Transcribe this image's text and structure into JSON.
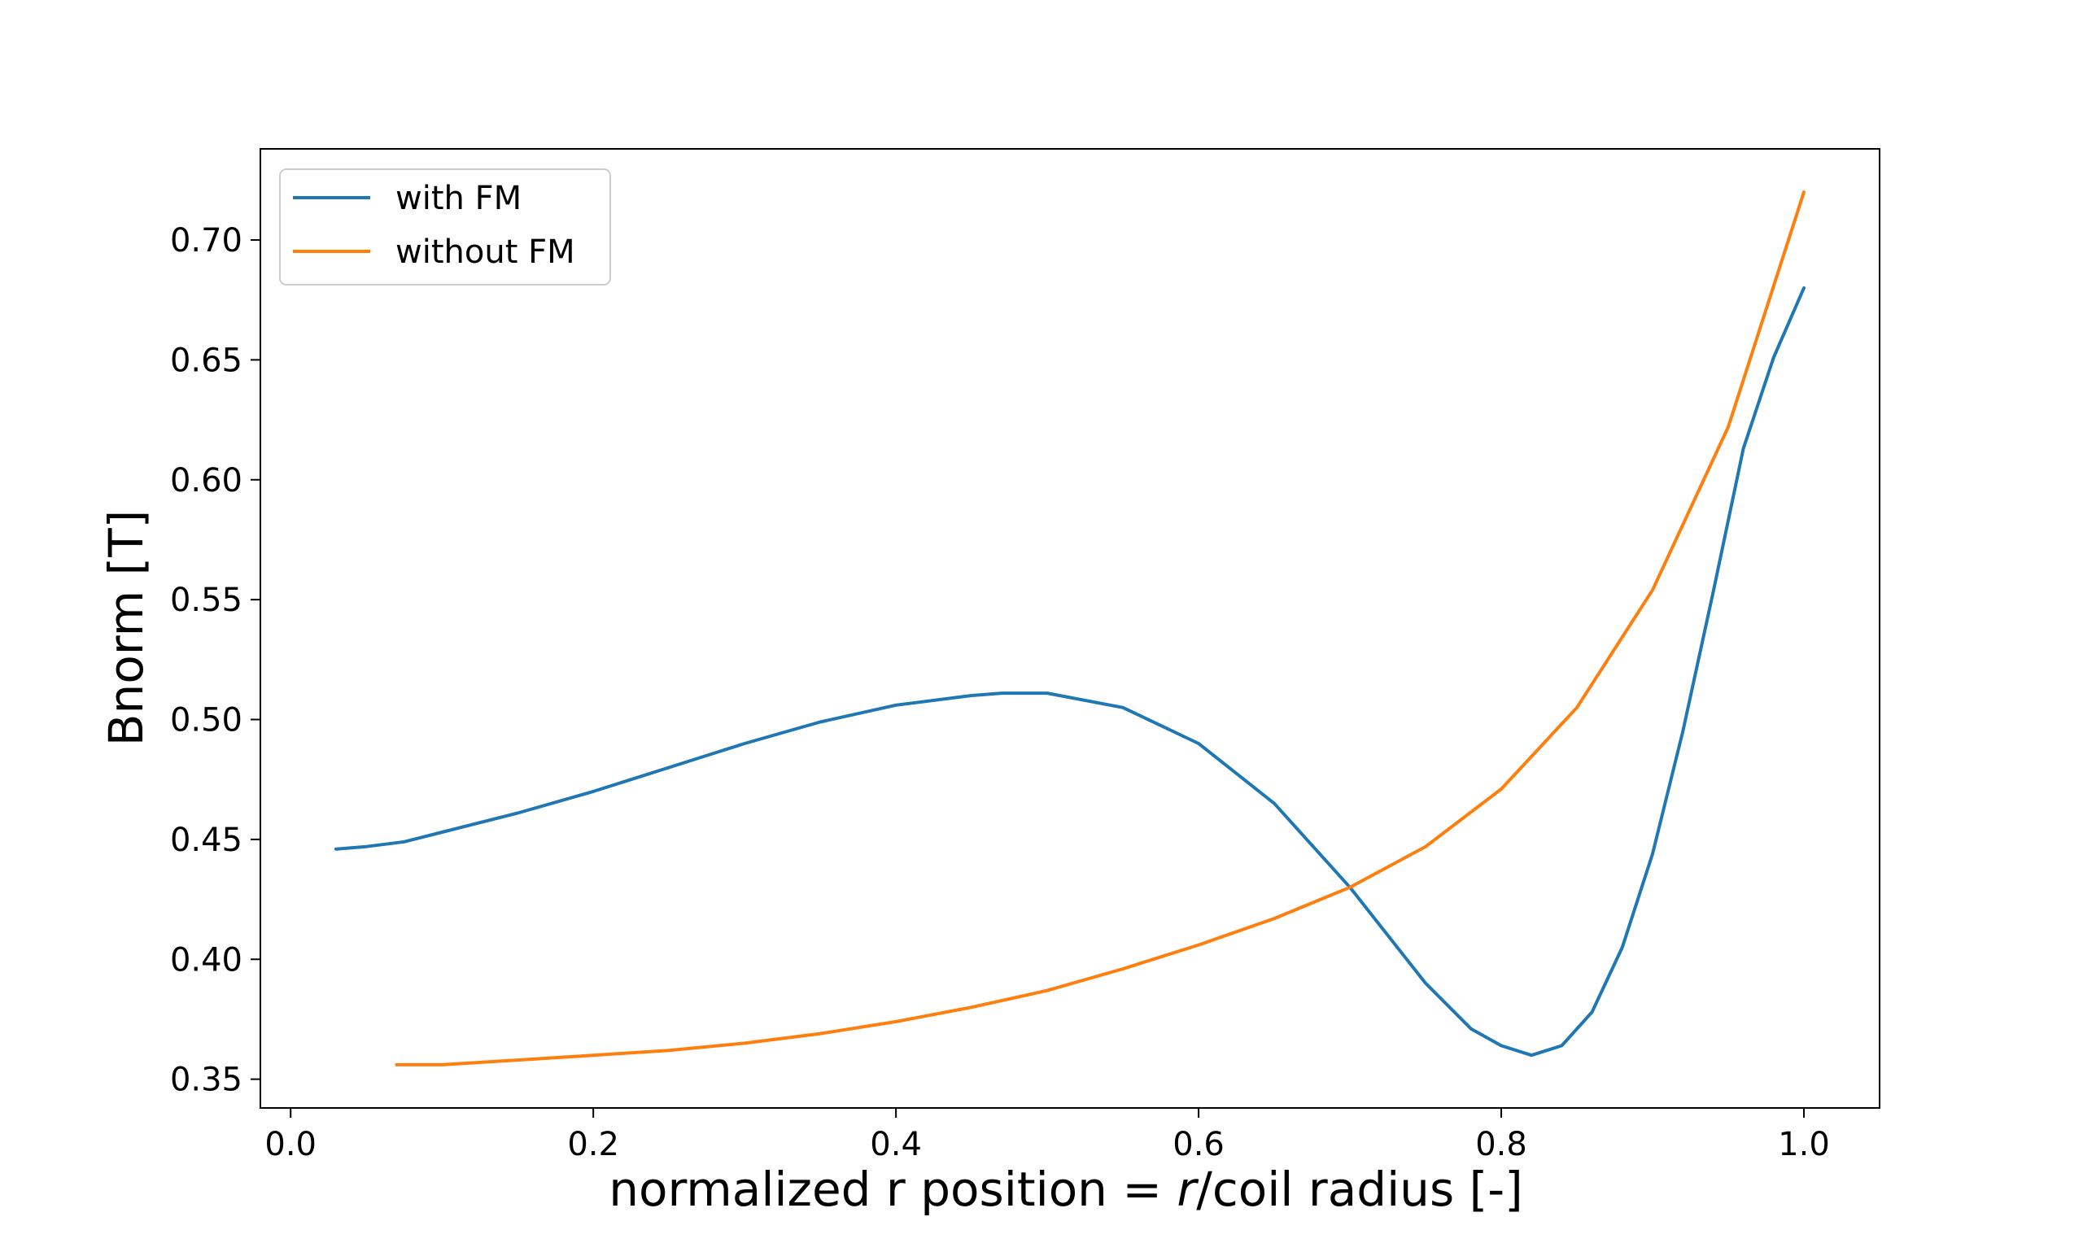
{
  "chart_data": {
    "type": "line",
    "title": "",
    "xlabel_parts": [
      "normalized r position = ",
      "r",
      "/coil radius [-]"
    ],
    "ylabel": "Bnorm [T]",
    "xlim": [
      -0.02,
      1.05
    ],
    "ylim": [
      0.338,
      0.738
    ],
    "xticks": [
      0.0,
      0.2,
      0.4,
      0.6,
      0.8,
      1.0
    ],
    "xtick_labels": [
      "0.0",
      "0.2",
      "0.4",
      "0.6",
      "0.8",
      "1.0"
    ],
    "yticks": [
      0.35,
      0.4,
      0.45,
      0.5,
      0.55,
      0.6,
      0.65,
      0.7
    ],
    "ytick_labels": [
      "0.35",
      "0.40",
      "0.45",
      "0.50",
      "0.55",
      "0.60",
      "0.65",
      "0.70"
    ],
    "grid": false,
    "legend_position": "top-left",
    "series": [
      {
        "name": "with FM",
        "color": "#1f77b4",
        "x": [
          0.03,
          0.05,
          0.075,
          0.1,
          0.15,
          0.2,
          0.25,
          0.3,
          0.35,
          0.4,
          0.45,
          0.47,
          0.5,
          0.55,
          0.6,
          0.65,
          0.7,
          0.75,
          0.78,
          0.8,
          0.82,
          0.84,
          0.86,
          0.88,
          0.9,
          0.92,
          0.94,
          0.96,
          0.98,
          1.0
        ],
        "y": [
          0.446,
          0.447,
          0.449,
          0.453,
          0.461,
          0.47,
          0.48,
          0.49,
          0.499,
          0.506,
          0.51,
          0.511,
          0.511,
          0.505,
          0.49,
          0.465,
          0.43,
          0.39,
          0.371,
          0.364,
          0.36,
          0.364,
          0.378,
          0.405,
          0.444,
          0.495,
          0.553,
          0.613,
          0.651,
          0.68
        ]
      },
      {
        "name": "without FM",
        "color": "#ff7f0e",
        "x": [
          0.07,
          0.1,
          0.15,
          0.2,
          0.25,
          0.3,
          0.35,
          0.4,
          0.45,
          0.5,
          0.55,
          0.6,
          0.65,
          0.7,
          0.75,
          0.8,
          0.85,
          0.9,
          0.95,
          1.0
        ],
        "y": [
          0.356,
          0.356,
          0.358,
          0.36,
          0.362,
          0.365,
          0.369,
          0.374,
          0.38,
          0.387,
          0.396,
          0.406,
          0.417,
          0.43,
          0.447,
          0.471,
          0.505,
          0.554,
          0.622,
          0.72
        ]
      }
    ]
  }
}
